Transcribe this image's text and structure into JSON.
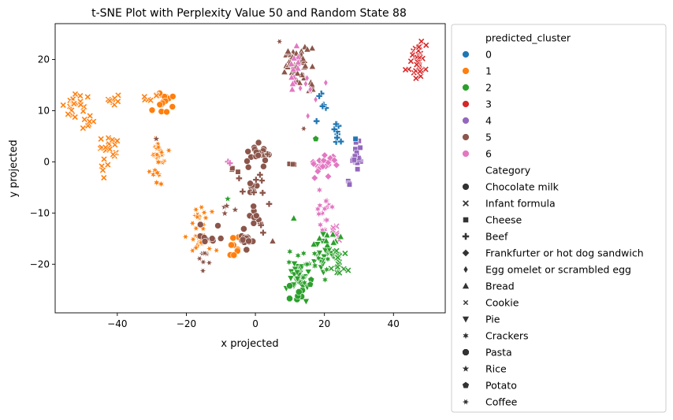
{
  "chart_data": {
    "type": "scatter",
    "title": "t-SNE Plot with Perplexity Value 50 and Random State 88",
    "xlabel": "x projected",
    "ylabel": "y projected",
    "xlim": [
      -58,
      55
    ],
    "ylim": [
      -29.5,
      27
    ],
    "xticks": [
      -40,
      -20,
      0,
      20,
      40
    ],
    "yticks": [
      -20,
      -10,
      0,
      10,
      20
    ],
    "grid": false,
    "legend": {
      "placement": "outside-right",
      "hue_title": "predicted_cluster",
      "hue_entries": [
        {
          "label": "0",
          "color": "#1f77b4"
        },
        {
          "label": "1",
          "color": "#ff7f0e"
        },
        {
          "label": "2",
          "color": "#2ca02c"
        },
        {
          "label": "3",
          "color": "#d62728"
        },
        {
          "label": "4",
          "color": "#9467bd"
        },
        {
          "label": "5",
          "color": "#8c564b"
        },
        {
          "label": "6",
          "color": "#e377c2"
        }
      ],
      "style_title": "Category",
      "style_entries": [
        {
          "label": "Chocolate milk",
          "marker": "circle"
        },
        {
          "label": "Infant formula",
          "marker": "x"
        },
        {
          "label": "Cheese",
          "marker": "square"
        },
        {
          "label": "Beef",
          "marker": "plus"
        },
        {
          "label": "Frankfurter or hot dog sandwich",
          "marker": "diamond"
        },
        {
          "label": "Egg omelet or scrambled egg",
          "marker": "thin_diamond"
        },
        {
          "label": "Bread",
          "marker": "triangle_up"
        },
        {
          "label": "Cookie",
          "marker": "small_x"
        },
        {
          "label": "Pie",
          "marker": "triangle_down"
        },
        {
          "label": "Crackers",
          "marker": "star6"
        },
        {
          "label": "Pasta",
          "marker": "octagon"
        },
        {
          "label": "Rice",
          "marker": "star"
        },
        {
          "label": "Potato",
          "marker": "pentagon"
        },
        {
          "label": "Coffee",
          "marker": "xstar"
        }
      ]
    },
    "clusters": [
      {
        "cluster": "1",
        "color": "#ff7f0e",
        "marker": "x",
        "cx": -52,
        "cy": 11.2,
        "sx": 1.6,
        "sy": 1.0,
        "n": 22
      },
      {
        "cluster": "1",
        "color": "#ff7f0e",
        "marker": "x",
        "cx": -48,
        "cy": 7.8,
        "sx": 1.2,
        "sy": 0.9,
        "n": 8
      },
      {
        "cluster": "1",
        "color": "#ff7f0e",
        "marker": "x",
        "cx": -42.5,
        "cy": 2.5,
        "sx": 1.2,
        "sy": 1.4,
        "n": 20
      },
      {
        "cluster": "1",
        "color": "#ff7f0e",
        "marker": "x",
        "cx": -41,
        "cy": 12,
        "sx": 1.0,
        "sy": 0.7,
        "n": 8
      },
      {
        "cluster": "1",
        "color": "#ff7f0e",
        "marker": "x",
        "cx": -44,
        "cy": -1,
        "sx": 0.4,
        "sy": 1.0,
        "n": 4
      },
      {
        "cluster": "1",
        "color": "#ff7f0e",
        "marker": "circle",
        "cx": -26,
        "cy": 11.8,
        "sx": 1.2,
        "sy": 1.2,
        "n": 16
      },
      {
        "cluster": "1",
        "color": "#ff7f0e",
        "marker": "xstar",
        "cx": -28.5,
        "cy": 1.5,
        "sx": 1.2,
        "sy": 1.6,
        "n": 18
      },
      {
        "cluster": "1",
        "color": "#ff7f0e",
        "marker": "star6",
        "cx": -28,
        "cy": -2,
        "sx": 0.6,
        "sy": 1.4,
        "n": 8
      },
      {
        "cluster": "1",
        "color": "#ff7f0e",
        "marker": "x",
        "cx": -30.5,
        "cy": 12,
        "sx": 1.2,
        "sy": 0.8,
        "n": 6
      },
      {
        "cluster": "1",
        "color": "#ff7f0e",
        "marker": "xstar",
        "cx": -16,
        "cy": -11,
        "sx": 1.2,
        "sy": 1.2,
        "n": 14
      },
      {
        "cluster": "1",
        "color": "#ff7f0e",
        "marker": "xstar",
        "cx": -15,
        "cy": -16,
        "sx": 1.8,
        "sy": 1.4,
        "n": 22
      },
      {
        "cluster": "1",
        "color": "#ff7f0e",
        "marker": "octagon",
        "cx": -6,
        "cy": -16.5,
        "sx": 0.8,
        "sy": 1.3,
        "n": 8
      },
      {
        "cluster": "0",
        "color": "#1f77b4",
        "marker": "plus",
        "cx": 23.5,
        "cy": 7,
        "sx": 0.5,
        "sy": 1.6,
        "n": 10
      },
      {
        "cluster": "0",
        "color": "#1f77b4",
        "marker": "plus",
        "cx": 20,
        "cy": 11,
        "sx": 0.6,
        "sy": 0.4,
        "n": 3
      },
      {
        "cluster": "0",
        "color": "#1f77b4",
        "marker": "plus",
        "cx": 18,
        "cy": 8,
        "sx": 0.3,
        "sy": 0.3,
        "n": 2
      },
      {
        "cluster": "0",
        "color": "#1f77b4",
        "marker": "plus",
        "cx": 18.5,
        "cy": 13,
        "sx": 0.3,
        "sy": 0.3,
        "n": 2
      },
      {
        "cluster": "3",
        "color": "#d62728",
        "marker": "x",
        "cx": 47,
        "cy": 19.5,
        "sx": 1.3,
        "sy": 1.5,
        "n": 32
      },
      {
        "cluster": "4",
        "color": "#9467bd",
        "marker": "square",
        "cx": 29.5,
        "cy": 0.5,
        "sx": 0.8,
        "sy": 1.7,
        "n": 16
      },
      {
        "cluster": "4",
        "color": "#9467bd",
        "marker": "square",
        "cx": 27,
        "cy": -4,
        "sx": 0.4,
        "sy": 0.5,
        "n": 3
      },
      {
        "cluster": "5",
        "color": "#8c564b",
        "marker": "triangle_up",
        "cx": 12,
        "cy": 19.5,
        "sx": 2.0,
        "sy": 2.0,
        "n": 48
      },
      {
        "cluster": "5",
        "color": "#8c564b",
        "marker": "triangle_up",
        "cx": 16.5,
        "cy": 14.8,
        "sx": 0.6,
        "sy": 0.6,
        "n": 6
      },
      {
        "cluster": "5",
        "color": "#8c564b",
        "marker": "circle",
        "cx": 1.5,
        "cy": 1.5,
        "sx": 1.5,
        "sy": 1.4,
        "n": 20
      },
      {
        "cluster": "5",
        "color": "#8c564b",
        "marker": "circle",
        "cx": -1,
        "cy": -6,
        "sx": 0.8,
        "sy": 2.0,
        "n": 10
      },
      {
        "cluster": "5",
        "color": "#8c564b",
        "marker": "circle",
        "cx": 0,
        "cy": -11,
        "sx": 0.7,
        "sy": 0.8,
        "n": 6
      },
      {
        "cluster": "5",
        "color": "#8c564b",
        "marker": "octagon",
        "cx": -3,
        "cy": -15,
        "sx": 1.2,
        "sy": 1.2,
        "n": 14
      },
      {
        "cluster": "5",
        "color": "#8c564b",
        "marker": "xstar",
        "cx": -16,
        "cy": -19,
        "sx": 1.2,
        "sy": 1.2,
        "n": 8
      },
      {
        "cluster": "5",
        "color": "#8c564b",
        "marker": "circle",
        "cx": -13,
        "cy": -13,
        "sx": 1.8,
        "sy": 2.0,
        "n": 10
      },
      {
        "cluster": "5",
        "color": "#8c564b",
        "marker": "plus",
        "cx": 0,
        "cy": -6,
        "sx": 2.5,
        "sy": 3.0,
        "n": 10
      },
      {
        "cluster": "5",
        "color": "#8c564b",
        "marker": "square",
        "cx": -6,
        "cy": -1.5,
        "sx": 1.0,
        "sy": 0.5,
        "n": 3
      },
      {
        "cluster": "5",
        "color": "#8c564b",
        "marker": "star",
        "cx": -7,
        "cy": -9,
        "sx": 1.4,
        "sy": 0.6,
        "n": 4
      },
      {
        "cluster": "5",
        "color": "#8c564b",
        "marker": "square",
        "cx": 10,
        "cy": -0.5,
        "sx": 1.0,
        "sy": 0.3,
        "n": 3
      },
      {
        "cluster": "6",
        "color": "#e377c2",
        "marker": "diamond",
        "cx": 20,
        "cy": -0.5,
        "sx": 2.0,
        "sy": 1.5,
        "n": 22
      },
      {
        "cluster": "6",
        "color": "#e377c2",
        "marker": "star6",
        "cx": 20,
        "cy": -10,
        "sx": 1.2,
        "sy": 2.0,
        "n": 16
      },
      {
        "cluster": "6",
        "color": "#e377c2",
        "marker": "triangle_up",
        "cx": 11,
        "cy": 17.5,
        "sx": 1.2,
        "sy": 2.5,
        "n": 12
      },
      {
        "cluster": "6",
        "color": "#e377c2",
        "marker": "thin_diamond",
        "cx": 16,
        "cy": 13,
        "sx": 2.0,
        "sy": 2.0,
        "n": 8
      },
      {
        "cluster": "6",
        "color": "#e377c2",
        "marker": "x",
        "cx": 22,
        "cy": -14,
        "sx": 1.5,
        "sy": 1.0,
        "n": 6
      },
      {
        "cluster": "6",
        "color": "#e377c2",
        "marker": "plus",
        "cx": -8,
        "cy": 0,
        "sx": 0.6,
        "sy": 0.4,
        "n": 2
      },
      {
        "cluster": "2",
        "color": "#2ca02c",
        "marker": "triangle_down",
        "cx": 13,
        "cy": -23,
        "sx": 1.8,
        "sy": 1.8,
        "n": 30
      },
      {
        "cluster": "2",
        "color": "#2ca02c",
        "marker": "octagon",
        "cx": 12.5,
        "cy": -25.5,
        "sx": 1.2,
        "sy": 0.8,
        "n": 10
      },
      {
        "cluster": "2",
        "color": "#2ca02c",
        "marker": "triangle_down",
        "cx": 20,
        "cy": -18,
        "sx": 2.0,
        "sy": 1.5,
        "n": 22
      },
      {
        "cluster": "2",
        "color": "#2ca02c",
        "marker": "x",
        "cx": 24.5,
        "cy": -20,
        "sx": 1.3,
        "sy": 1.2,
        "n": 16
      },
      {
        "cluster": "2",
        "color": "#2ca02c",
        "marker": "star6",
        "cx": 16,
        "cy": -20,
        "sx": 2.5,
        "sy": 2.0,
        "n": 16
      },
      {
        "cluster": "2",
        "color": "#2ca02c",
        "marker": "triangle_up",
        "cx": 22,
        "cy": -15,
        "sx": 2.5,
        "sy": 1.5,
        "n": 10
      },
      {
        "cluster": "2",
        "color": "#2ca02c",
        "marker": "pentagon",
        "cx": 16,
        "cy": -24,
        "sx": 0.5,
        "sy": 0.5,
        "n": 2
      },
      {
        "cluster": "2",
        "color": "#2ca02c",
        "marker": "triangle_up",
        "cx": 11,
        "cy": -11,
        "sx": 0.3,
        "sy": 0.3,
        "n": 1
      },
      {
        "cluster": "2",
        "color": "#2ca02c",
        "marker": "star",
        "cx": -8,
        "cy": -7,
        "sx": 0.3,
        "sy": 0.3,
        "n": 1
      }
    ],
    "points": [
      {
        "x": 43.5,
        "y": 18,
        "cluster": "3",
        "color": "#d62728",
        "marker": "x"
      },
      {
        "x": 14,
        "y": 6.5,
        "cluster": "5",
        "color": "#8c564b",
        "marker": "xstar"
      },
      {
        "x": 17.5,
        "y": 4.5,
        "cluster": "2",
        "color": "#2ca02c",
        "marker": "pentagon"
      },
      {
        "x": 3.5,
        "y": 1.5,
        "cluster": "5",
        "color": "#8c564b",
        "marker": "plus"
      },
      {
        "x": 7,
        "y": 23.5,
        "cluster": "5",
        "color": "#8c564b",
        "marker": "xstar"
      },
      {
        "x": -28.7,
        "y": 4.5,
        "cluster": "5",
        "color": "#8c564b",
        "marker": "star"
      },
      {
        "x": 5,
        "y": -15.5,
        "cluster": "5",
        "color": "#8c564b",
        "marker": "triangle_up"
      },
      {
        "x": 29,
        "y": 4.5,
        "cluster": "0",
        "color": "#1f77b4",
        "marker": "square"
      }
    ]
  }
}
